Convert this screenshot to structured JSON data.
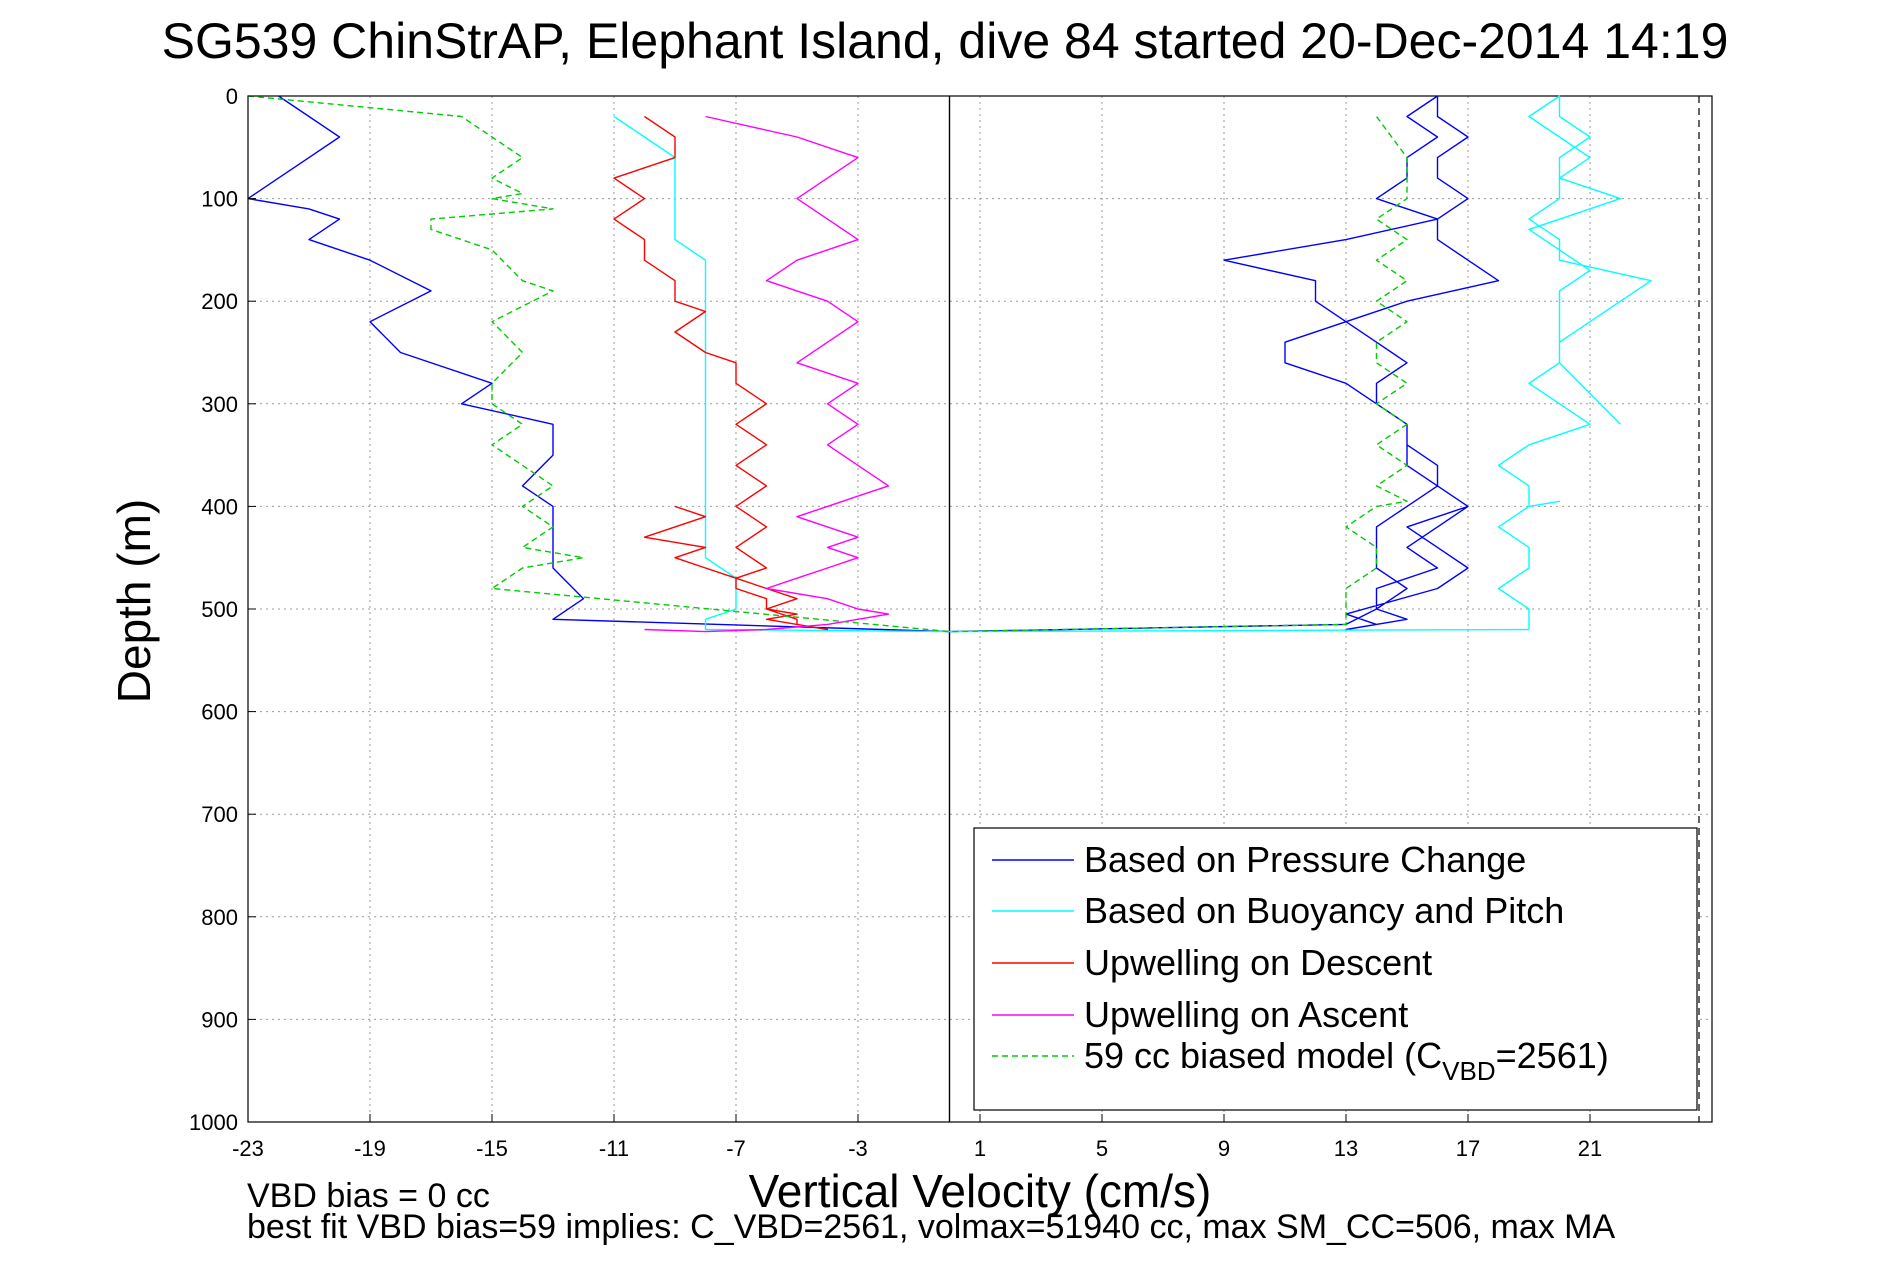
{
  "chart_data": {
    "type": "line",
    "title": "SG539 ChinStrAP, Elephant Island, dive 84 started 20-Dec-2014 14:19",
    "xlabel": "Vertical Velocity (cm/s)",
    "ylabel": "Depth (m)",
    "xlim": [
      -23,
      25
    ],
    "ylim": [
      0,
      1000
    ],
    "y_reversed": true,
    "grid": true,
    "xticks": [
      -23,
      -19,
      -15,
      -11,
      -7,
      -3,
      1,
      5,
      9,
      13,
      17,
      21
    ],
    "xtick_labels": [
      "-23",
      "-19",
      "-15",
      "-11",
      "-7",
      "-3",
      "1",
      "5",
      "9",
      "13",
      "17",
      "21"
    ],
    "yticks": [
      0,
      100,
      200,
      300,
      400,
      500,
      600,
      700,
      800,
      900,
      1000
    ],
    "ytick_labels": [
      "0",
      "100",
      "200",
      "300",
      "400",
      "500",
      "600",
      "700",
      "800",
      "900",
      "1000"
    ],
    "legend_position": "bottom-right",
    "zero_line_x": 0,
    "series": [
      {
        "name": "Based on Pressure Change",
        "color": "#0000ff",
        "style": "solid",
        "x": [
          -22,
          -21,
          -20,
          -21,
          -22,
          -23,
          -21,
          -20,
          -21,
          -19,
          -17,
          -19,
          -18,
          -15,
          -16,
          -13,
          -13,
          -14,
          -13,
          -13,
          -13,
          -12,
          -13,
          0,
          0,
          13,
          14,
          14,
          16,
          15,
          16,
          17,
          16,
          16,
          15,
          15,
          14,
          13,
          11,
          11,
          13,
          12,
          12,
          9,
          13,
          16,
          14,
          15,
          15,
          16,
          15,
          16,
          16,
          17,
          16,
          16,
          17,
          16,
          16,
          17,
          18,
          15,
          13,
          14,
          15,
          14,
          14,
          15,
          15,
          15,
          16,
          15,
          14,
          14,
          14,
          15,
          14,
          15,
          13,
          14,
          13,
          16,
          17,
          16,
          15,
          17,
          16
        ],
        "y": [
          0,
          20,
          40,
          60,
          80,
          100,
          110,
          120,
          140,
          160,
          190,
          220,
          250,
          280,
          300,
          320,
          350,
          380,
          400,
          430,
          460,
          490,
          510,
          522,
          522,
          515,
          500,
          480,
          460,
          440,
          420,
          400,
          380,
          360,
          340,
          320,
          300,
          280,
          260,
          240,
          220,
          200,
          180,
          160,
          140,
          120,
          100,
          80,
          60,
          40,
          20,
          0,
          20,
          40,
          60,
          80,
          100,
          120,
          140,
          160,
          180,
          200,
          220,
          240,
          260,
          280,
          300,
          320,
          340,
          360,
          380,
          400,
          420,
          440,
          460,
          480,
          500,
          510,
          520,
          515,
          505,
          480,
          460,
          440,
          420,
          400,
          380
        ]
      },
      {
        "name": "Based on Buoyancy and Pitch",
        "color": "#00ffff",
        "style": "solid",
        "x": [
          -11,
          -10,
          -9,
          -9,
          -9,
          -9,
          -9,
          -8,
          -8,
          -8,
          -8,
          -8,
          -8,
          -8,
          -8,
          -8,
          -7,
          -7,
          -7,
          -8,
          -8,
          -8,
          0,
          19,
          19,
          19,
          18,
          19,
          19,
          18,
          19,
          20,
          19,
          19,
          18,
          19,
          21,
          20,
          19,
          20,
          20,
          21,
          22,
          23,
          20,
          20,
          19,
          20,
          20,
          21,
          20,
          19,
          20,
          20,
          21,
          20,
          20,
          22,
          19,
          20,
          21,
          20,
          20,
          20,
          21,
          22
        ],
        "y": [
          20,
          40,
          60,
          80,
          100,
          120,
          140,
          160,
          180,
          200,
          250,
          300,
          350,
          400,
          420,
          450,
          470,
          480,
          500,
          510,
          515,
          520,
          522,
          520,
          510,
          500,
          480,
          460,
          440,
          420,
          400,
          395,
          400,
          380,
          360,
          340,
          320,
          300,
          280,
          260,
          240,
          220,
          200,
          180,
          160,
          140,
          120,
          100,
          80,
          60,
          40,
          20,
          0,
          20,
          40,
          60,
          80,
          100,
          130,
          150,
          170,
          190,
          230,
          260,
          290,
          320
        ]
      },
      {
        "name": "Upwelling on Descent",
        "color": "#ff0000",
        "style": "solid",
        "x": [
          -10,
          -9,
          -9,
          -11,
          -10,
          -11,
          -10,
          -10,
          -9,
          -9,
          -8,
          -9,
          -8,
          -7,
          -7,
          -6,
          -7,
          -6,
          -7,
          -6,
          -7,
          -6,
          -7,
          -6,
          -7,
          -7,
          -6,
          -6,
          -5,
          -6,
          -5,
          -4,
          -5,
          -5,
          -6,
          -5,
          -6,
          -7,
          -8,
          -9,
          -8,
          -10,
          -9,
          -8,
          -9
        ],
        "y": [
          20,
          40,
          60,
          80,
          100,
          120,
          140,
          160,
          180,
          200,
          210,
          230,
          250,
          260,
          280,
          300,
          320,
          340,
          360,
          380,
          400,
          420,
          440,
          460,
          470,
          480,
          490,
          500,
          505,
          510,
          515,
          520,
          515,
          510,
          500,
          490,
          480,
          470,
          460,
          450,
          440,
          430,
          420,
          410,
          400
        ]
      },
      {
        "name": "Upwelling on Ascent",
        "color": "#ff00ff",
        "style": "solid",
        "x": [
          -8,
          -5,
          -3,
          -4,
          -5,
          -4,
          -3,
          -5,
          -6,
          -4,
          -3,
          -4,
          -5,
          -3,
          -4,
          -3,
          -4,
          -3,
          -2,
          -3,
          -4,
          -5,
          -4,
          -3,
          -4,
          -3,
          -4,
          -5,
          -6,
          -4,
          -3,
          -2,
          -3,
          -4,
          -6,
          -8,
          -10
        ],
        "y": [
          20,
          40,
          60,
          80,
          100,
          120,
          140,
          160,
          180,
          200,
          220,
          240,
          260,
          280,
          300,
          320,
          340,
          360,
          380,
          390,
          400,
          410,
          420,
          430,
          440,
          450,
          460,
          470,
          480,
          490,
          500,
          505,
          510,
          515,
          520,
          522,
          520
        ]
      },
      {
        "name": "59 cc biased model (C<sub>VBD</sub>=2561)",
        "color": "#00cc00",
        "style": "dashed",
        "x": [
          -23,
          -16,
          -15,
          -14,
          -15,
          -14,
          -15,
          -13,
          -17,
          -17,
          -15,
          -14,
          -13,
          -15,
          -14,
          -15,
          -15,
          -14,
          -15,
          -14,
          -13,
          -14,
          -13,
          -14,
          -12,
          -14,
          -15,
          0,
          13,
          13,
          13,
          14,
          14,
          13,
          14,
          15,
          14,
          15,
          14,
          15,
          14,
          15,
          14,
          14,
          15,
          14,
          15,
          14,
          15,
          14,
          15,
          15,
          14
        ],
        "y": [
          0,
          20,
          40,
          60,
          80,
          95,
          100,
          110,
          120,
          130,
          150,
          180,
          190,
          220,
          250,
          280,
          300,
          320,
          340,
          360,
          380,
          400,
          420,
          440,
          450,
          460,
          480,
          522,
          515,
          500,
          480,
          460,
          440,
          420,
          400,
          395,
          380,
          360,
          340,
          320,
          300,
          280,
          260,
          240,
          220,
          200,
          180,
          160,
          140,
          120,
          100,
          60,
          20
        ]
      }
    ]
  },
  "notes": {
    "line1": "VBD bias = 0 cc",
    "line2": "best fit VBD bias=59 implies: C_VBD=2561, volmax=51940 cc, max SM_CC=506, max MA"
  }
}
